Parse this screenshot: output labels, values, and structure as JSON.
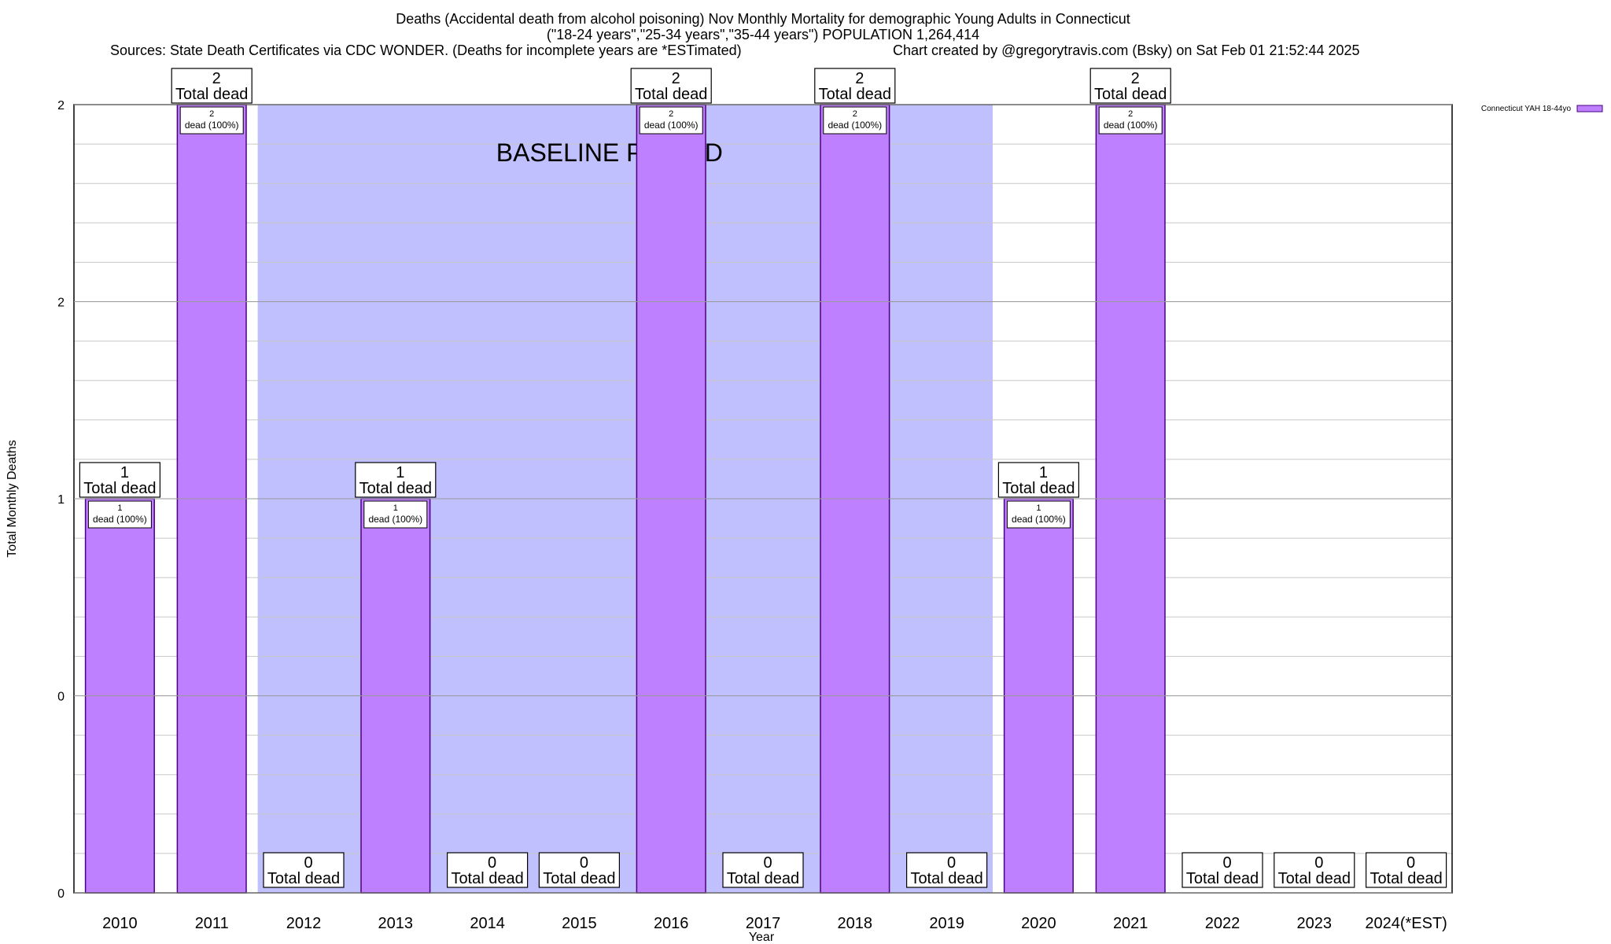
{
  "title": {
    "line1": "Deaths (Accidental death from alcohol poisoning) Nov Monthly Mortality for demographic Young Adults in Connecticut",
    "line2": "(\"18-24 years\",\"25-34 years\",\"35-44 years\") POPULATION 1,264,414",
    "sources": "Sources: State Death Certificates via CDC WONDER. (Deaths for incomplete years are *ESTimated)",
    "credit": "Chart created by @gregorytravis.com (Bsky) on Sat Feb 01 21:52:44 2025"
  },
  "chart_data": {
    "type": "bar",
    "xlabel": "Year",
    "ylabel": "Total Monthly Deaths",
    "categories": [
      "2010",
      "2011",
      "2012",
      "2013",
      "2014",
      "2015",
      "2016",
      "2017",
      "2018",
      "2019",
      "2020",
      "2021",
      "2022",
      "2023",
      "2024(*EST)"
    ],
    "series": [
      {
        "name": "Connecticut YAH 18-44yo",
        "values": [
          1,
          2,
          0,
          1,
          0,
          0,
          2,
          0,
          2,
          0,
          1,
          2,
          0,
          0,
          0
        ]
      }
    ],
    "ylim": [
      0,
      2
    ],
    "y_ticks": [
      {
        "value": 0,
        "label": "0"
      },
      {
        "value": 0.5,
        "label": "0"
      },
      {
        "value": 1,
        "label": "1"
      },
      {
        "value": 1.5,
        "label": "2"
      },
      {
        "value": 2,
        "label": "2"
      }
    ],
    "grid": true,
    "legend_position": "top-right",
    "baseline_period": {
      "from": "2012",
      "to": "2019",
      "label": "BASELINE PERIOD"
    },
    "total_label_suffix": "Total dead",
    "inner_label_suffix": "dead (100%)",
    "colors": {
      "bar": "#bf80ff",
      "bar_border": "#4b0082",
      "baseline": "#c0c0ff",
      "grid": "#c8c8c8"
    }
  }
}
